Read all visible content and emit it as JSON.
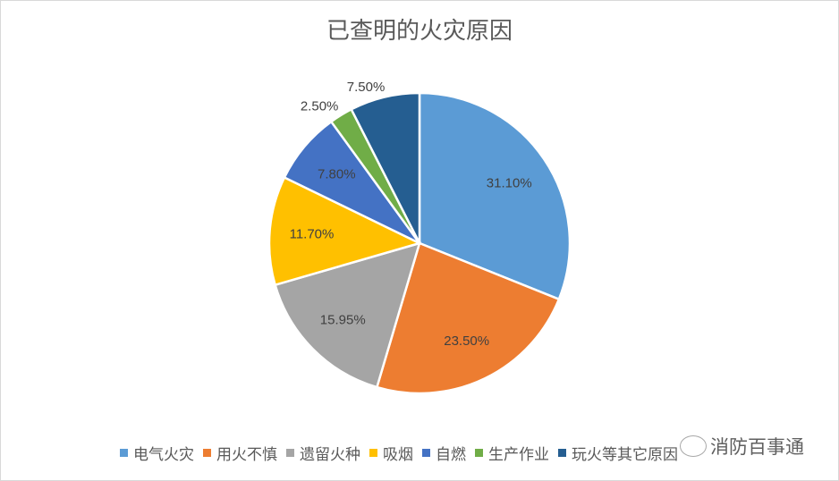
{
  "chart_data": {
    "type": "pie",
    "title": "已查明的火灾原因",
    "start_angle": "12 o'clock",
    "direction": "clockwise",
    "legend_position": "bottom",
    "slices": [
      {
        "label": "电气火灾",
        "value": 31.1,
        "value_label": "31.10%",
        "color": "#5B9BD5"
      },
      {
        "label": "用火不慎",
        "value": 23.5,
        "value_label": "23.50%",
        "color": "#ED7D31"
      },
      {
        "label": "遗留火种",
        "value": 15.95,
        "value_label": "15.95%",
        "color": "#A5A5A5"
      },
      {
        "label": "吸烟",
        "value": 11.7,
        "value_label": "11.70%",
        "color": "#FFC000"
      },
      {
        "label": "自燃",
        "value": 7.8,
        "value_label": "7.80%",
        "color": "#4472C4"
      },
      {
        "label": "生产作业",
        "value": 2.5,
        "value_label": "2.50%",
        "color": "#70AD47"
      },
      {
        "label": "玩火等其它原因",
        "value": 7.5,
        "value_label": "7.50%",
        "color": "#255E91"
      }
    ]
  },
  "watermark": {
    "text": "消防百事通",
    "icon": "wechat-icon"
  }
}
